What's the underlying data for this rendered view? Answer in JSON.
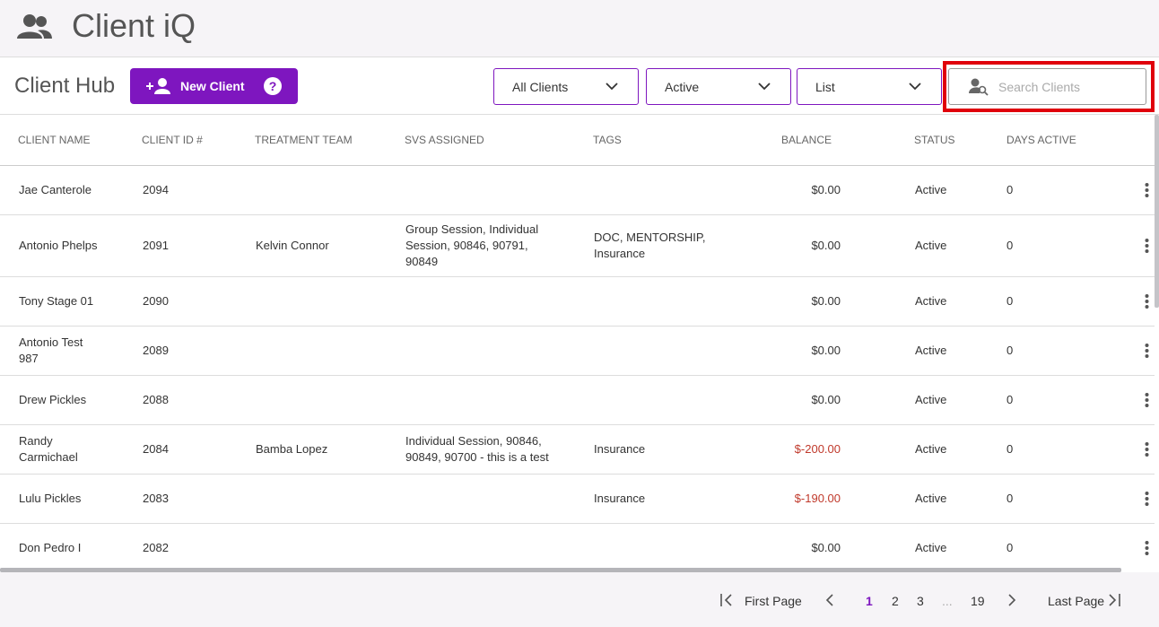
{
  "header": {
    "title": "Client iQ"
  },
  "toolbar": {
    "title": "Client Hub",
    "new_client_button": "New Client",
    "filters": [
      "All Clients",
      "Active",
      "List"
    ],
    "search_placeholder": "Search Clients"
  },
  "table": {
    "columns": [
      "CLIENT NAME",
      "CLIENT ID #",
      "TREATMENT TEAM",
      "SVS ASSIGNED",
      "TAGS",
      "BALANCE",
      "STATUS",
      "DAYS ACTIVE"
    ],
    "rows": [
      [
        "Jae Canterole",
        2094,
        null,
        null,
        null,
        "$0.00",
        "Active",
        0
      ],
      [
        "Antonio Phelps",
        2091,
        "Kelvin Connor",
        "Group Session, Individual Session, 90846, 90791, 90849",
        "DOC, MENTORSHIP, Insurance",
        "$0.00",
        "Active",
        0
      ],
      [
        "Tony Stage 01",
        2090,
        null,
        null,
        null,
        "$0.00",
        "Active",
        0
      ],
      [
        "Antonio Test 987",
        2089,
        null,
        null,
        null,
        "$0.00",
        "Active",
        0
      ],
      [
        "Drew Pickles",
        2088,
        null,
        null,
        null,
        "$0.00",
        "Active",
        0
      ],
      [
        "Randy Carmichael",
        2084,
        "Bamba Lopez",
        "Individual Session, 90846, 90849, 90700 - this is a test",
        "Insurance",
        "$-200.00",
        "Active",
        0
      ],
      [
        "Lulu Pickles",
        2083,
        null,
        null,
        "Insurance",
        "$-190.00",
        "Active",
        0
      ],
      [
        "Don Pedro I",
        2082,
        null,
        null,
        null,
        "$0.00",
        "Active",
        0
      ]
    ]
  },
  "pagination": {
    "first": "First Page",
    "pages": [
      "1",
      "2",
      "3",
      "...",
      "19"
    ],
    "current": "1",
    "last": "Last Page"
  }
}
